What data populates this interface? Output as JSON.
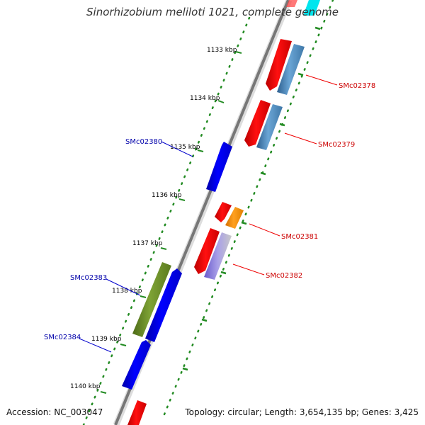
{
  "map": {
    "title": "Sinorhizobium meliloti 1021, complete genome",
    "accession": "Accession: NC_003047",
    "summary": "Topology: circular; Length: 3,654,135 bp; Genes: 3,425"
  },
  "ticks": [
    {
      "label": "1133 kbp"
    },
    {
      "label": "1134 kbp"
    },
    {
      "label": "1135 kbp"
    },
    {
      "label": "1136 kbp"
    },
    {
      "label": "1137 kbp"
    },
    {
      "label": "1138 kbp"
    },
    {
      "label": "1139 kbp"
    },
    {
      "label": "1140 kbp"
    }
  ],
  "genes": [
    {
      "label": "SMc02378",
      "strand": "forward"
    },
    {
      "label": "SMc02379",
      "strand": "forward"
    },
    {
      "label": "SMc02380",
      "strand": "reverse"
    },
    {
      "label": "SMc02381",
      "strand": "forward"
    },
    {
      "label": "SMc02382",
      "strand": "forward"
    },
    {
      "label": "SMc02383",
      "strand": "reverse"
    },
    {
      "label": "SMc02384",
      "strand": "reverse"
    }
  ],
  "colors": {
    "backbone": "#888888",
    "tick_dots": "#228b22",
    "reverse_gene": "#0000ee",
    "forward_gene": "#ee0000",
    "forward_label": "#cc0000",
    "reverse_label": "#0000aa",
    "blue_feature": "#4682b4",
    "orange_feature": "#ff8c00",
    "olive_feature": "#6b8e23",
    "lavender_feature": "#8b7fd6",
    "cyan_feature": "#00e5ee"
  }
}
